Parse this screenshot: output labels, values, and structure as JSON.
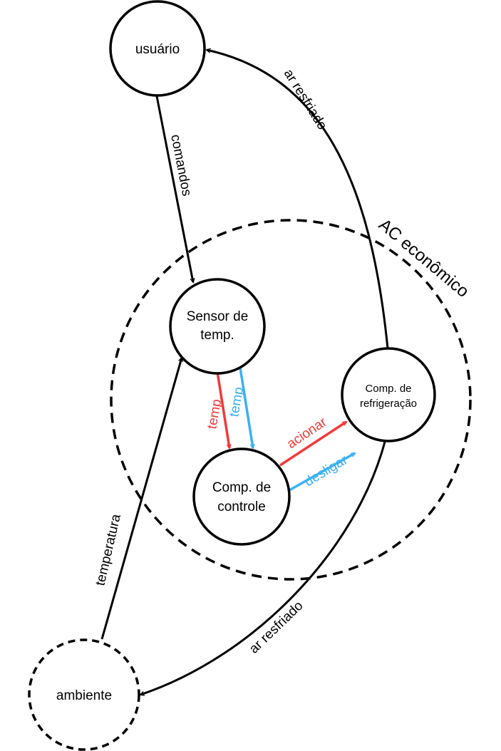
{
  "diagram": {
    "system_label": "AC econômico",
    "nodes": {
      "usuario": {
        "line1": "usuário"
      },
      "sensor": {
        "line1": "Sensor de",
        "line2": "temp."
      },
      "controle": {
        "line1": "Comp. de",
        "line2": "controle"
      },
      "refrigeracao": {
        "line1": "Comp. de",
        "line2": "refrigeração"
      },
      "ambiente": {
        "line1": "ambiente"
      }
    },
    "edges": {
      "comandos": "comandos",
      "ar_resfriado_top": "ar resfriado",
      "ar_resfriado_bottom": "ar resfriado",
      "temperatura": "temperatura",
      "temp_red": "temp.",
      "temp_blue": "temp.",
      "acionar": "acionar",
      "desligar": "desligar"
    },
    "colors": {
      "red": "#f03a3a",
      "blue": "#3ab0f5",
      "black": "#000000"
    }
  }
}
